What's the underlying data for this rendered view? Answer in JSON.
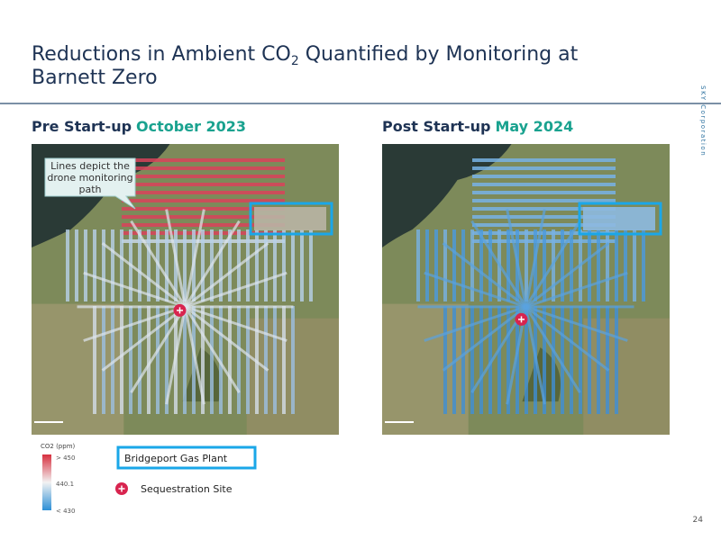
{
  "header": {
    "title_line1": [
      "Reductions in Ambient CO",
      "2",
      " Quantified by Monitoring at"
    ],
    "title_line2": "Barnett Zero",
    "brand": "SKY Corporation"
  },
  "panels": [
    {
      "label": "Pre Start-up",
      "date": "October 2023",
      "callout": [
        "Lines depict the",
        "drone monitoring",
        "path"
      ]
    },
    {
      "label": "Post Start-up",
      "date": "May 2024"
    }
  ],
  "legend": {
    "scale_title": "CO2 (ppm)",
    "scale_labels": [
      "> 450",
      "440.1",
      "< 430"
    ],
    "box_label": "Bridgeport Gas Plant",
    "site_label": "Sequestration Site"
  },
  "page_number": "24"
}
